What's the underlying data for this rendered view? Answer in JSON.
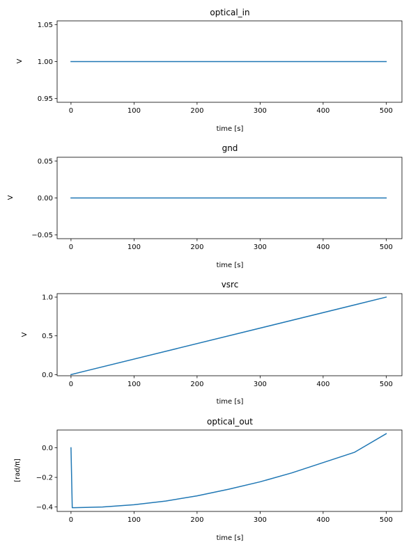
{
  "chart_data": [
    {
      "type": "line",
      "title": "optical_in",
      "xlabel": "time [s]",
      "ylabel": "V",
      "xlim": [
        -22,
        525
      ],
      "ylim": [
        0.945,
        1.055
      ],
      "xticks": [
        "0",
        "100",
        "200",
        "300",
        "400",
        "500"
      ],
      "yticks": [
        "0.95",
        "1.00",
        "1.05"
      ],
      "color": "#1f77b4",
      "grid": false,
      "x": [
        0,
        500
      ],
      "y": [
        1.0,
        1.0
      ]
    },
    {
      "type": "line",
      "title": "gnd",
      "xlabel": "time [s]",
      "ylabel": "V",
      "xlim": [
        -22,
        525
      ],
      "ylim": [
        -0.055,
        0.055
      ],
      "xticks": [
        "0",
        "100",
        "200",
        "300",
        "400",
        "500"
      ],
      "yticks": [
        "−0.05",
        "0.00",
        "0.05"
      ],
      "color": "#1f77b4",
      "grid": false,
      "x": [
        0,
        500
      ],
      "y": [
        0.0,
        0.0
      ]
    },
    {
      "type": "line",
      "title": "vsrc",
      "xlabel": "time [s]",
      "ylabel": "V",
      "xlim": [
        -22,
        525
      ],
      "ylim": [
        -0.015,
        1.045
      ],
      "xticks": [
        "0",
        "100",
        "200",
        "300",
        "400",
        "500"
      ],
      "yticks": [
        "0.0",
        "0.5",
        "1.0"
      ],
      "color": "#1f77b4",
      "grid": false,
      "x": [
        0,
        500
      ],
      "y": [
        0.0,
        1.0
      ]
    },
    {
      "type": "line",
      "title": "optical_out",
      "xlabel": "time [s]",
      "ylabel": "[rad/π]",
      "xlim": [
        -22,
        525
      ],
      "ylim": [
        -0.43,
        0.12
      ],
      "xticks": [
        "0",
        "100",
        "200",
        "300",
        "400",
        "500"
      ],
      "yticks": [
        "−0.4",
        "−0.2",
        "0.0"
      ],
      "color": "#1f77b4",
      "grid": false,
      "x": [
        0,
        2,
        5,
        50,
        100,
        150,
        200,
        250,
        300,
        350,
        400,
        450,
        500
      ],
      "y": [
        0.0,
        -0.405,
        -0.405,
        -0.4,
        -0.385,
        -0.36,
        -0.325,
        -0.28,
        -0.23,
        -0.17,
        -0.1,
        -0.03,
        0.095
      ]
    }
  ]
}
